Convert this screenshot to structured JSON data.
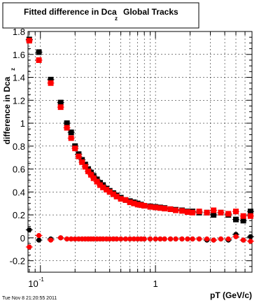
{
  "chart_data": {
    "type": "scatter",
    "title": "Fitted difference in Dca",
    "title_subscript": "z",
    "title_suffix": "Global Tracks",
    "xlabel": "pT (GeV/c)",
    "ylabel": "difference in Dca",
    "ylabel_subscript": "z",
    "x_scale": "log",
    "xlim": [
      0.078,
      6.9
    ],
    "ylim": [
      -0.3,
      1.8
    ],
    "grid": true,
    "y_ticks": [
      "-0.2",
      "0",
      "0.2",
      "0.4",
      "0.6",
      "0.8",
      "1",
      "1.2",
      "1.4",
      "1.6",
      "1.8"
    ],
    "x_ticks": [
      {
        "value": 0.1,
        "base": "10",
        "exponent": "-1"
      },
      {
        "value": 1,
        "base": "1",
        "exponent": ""
      }
    ],
    "footer": "Tue Nov  8 21:20:55 2011",
    "series": [
      {
        "name": "",
        "marker": "square",
        "color": "#000000",
        "points": [
          [
            0.08,
            1.73
          ],
          [
            0.097,
            1.62
          ],
          [
            0.123,
            1.38
          ],
          [
            0.15,
            1.18
          ],
          [
            0.17,
            1.0
          ],
          [
            0.185,
            0.92
          ],
          [
            0.2,
            0.8
          ],
          [
            0.215,
            0.73
          ],
          [
            0.23,
            0.68
          ],
          [
            0.245,
            0.64
          ],
          [
            0.26,
            0.6
          ],
          [
            0.275,
            0.57
          ],
          [
            0.29,
            0.54
          ],
          [
            0.31,
            0.51
          ],
          [
            0.33,
            0.48
          ],
          [
            0.35,
            0.46
          ],
          [
            0.375,
            0.43
          ],
          [
            0.4,
            0.41
          ],
          [
            0.43,
            0.39
          ],
          [
            0.46,
            0.37
          ],
          [
            0.5,
            0.35
          ],
          [
            0.55,
            0.33
          ],
          [
            0.6,
            0.32
          ],
          [
            0.65,
            0.31
          ],
          [
            0.7,
            0.3
          ],
          [
            0.75,
            0.29
          ],
          [
            0.8,
            0.28
          ],
          [
            0.9,
            0.275
          ],
          [
            1.0,
            0.27
          ],
          [
            1.1,
            0.265
          ],
          [
            1.2,
            0.26
          ],
          [
            1.35,
            0.25
          ],
          [
            1.5,
            0.245
          ],
          [
            1.7,
            0.24
          ],
          [
            1.9,
            0.23
          ],
          [
            2.1,
            0.23
          ],
          [
            2.4,
            0.22
          ],
          [
            2.8,
            0.22
          ],
          [
            3.2,
            0.2
          ],
          [
            3.7,
            0.22
          ],
          [
            4.3,
            0.2
          ],
          [
            5.0,
            0.16
          ],
          [
            5.8,
            0.15
          ],
          [
            6.7,
            0.23
          ]
        ]
      },
      {
        "name": "",
        "marker": "square",
        "color": "#ff0000",
        "points": [
          [
            0.08,
            1.72
          ],
          [
            0.097,
            1.55
          ],
          [
            0.123,
            1.35
          ],
          [
            0.15,
            1.14
          ],
          [
            0.17,
            0.96
          ],
          [
            0.185,
            0.87
          ],
          [
            0.2,
            0.78
          ],
          [
            0.215,
            0.71
          ],
          [
            0.23,
            0.66
          ],
          [
            0.245,
            0.62
          ],
          [
            0.26,
            0.58
          ],
          [
            0.275,
            0.55
          ],
          [
            0.29,
            0.52
          ],
          [
            0.31,
            0.49
          ],
          [
            0.33,
            0.46
          ],
          [
            0.35,
            0.44
          ],
          [
            0.375,
            0.42
          ],
          [
            0.4,
            0.4
          ],
          [
            0.43,
            0.38
          ],
          [
            0.46,
            0.36
          ],
          [
            0.5,
            0.34
          ],
          [
            0.55,
            0.33
          ],
          [
            0.6,
            0.31
          ],
          [
            0.65,
            0.3
          ],
          [
            0.7,
            0.29
          ],
          [
            0.75,
            0.285
          ],
          [
            0.8,
            0.28
          ],
          [
            0.9,
            0.27
          ],
          [
            1.0,
            0.265
          ],
          [
            1.1,
            0.26
          ],
          [
            1.2,
            0.255
          ],
          [
            1.35,
            0.25
          ],
          [
            1.5,
            0.24
          ],
          [
            1.7,
            0.235
          ],
          [
            1.9,
            0.225
          ],
          [
            2.1,
            0.22
          ],
          [
            2.4,
            0.23
          ],
          [
            2.8,
            0.22
          ],
          [
            3.2,
            0.24
          ],
          [
            3.7,
            0.22
          ],
          [
            4.3,
            0.21
          ],
          [
            5.0,
            0.23
          ],
          [
            5.8,
            0.19
          ],
          [
            6.7,
            0.19
          ]
        ]
      },
      {
        "name": "",
        "marker": "circle",
        "color": "#000000",
        "points": [
          [
            0.08,
            0.07
          ],
          [
            0.097,
            -0.02
          ],
          [
            0.123,
            -0.01
          ],
          [
            0.15,
            0.0
          ],
          [
            0.17,
            -0.01
          ],
          [
            0.185,
            -0.01
          ],
          [
            0.2,
            -0.01
          ],
          [
            0.215,
            -0.01
          ],
          [
            0.23,
            -0.01
          ],
          [
            0.245,
            -0.01
          ],
          [
            0.26,
            -0.01
          ],
          [
            0.275,
            -0.01
          ],
          [
            0.29,
            -0.01
          ],
          [
            0.31,
            -0.01
          ],
          [
            0.33,
            -0.01
          ],
          [
            0.35,
            -0.01
          ],
          [
            0.375,
            -0.01
          ],
          [
            0.4,
            -0.01
          ],
          [
            0.43,
            -0.01
          ],
          [
            0.46,
            -0.01
          ],
          [
            0.5,
            -0.01
          ],
          [
            0.55,
            -0.01
          ],
          [
            0.6,
            -0.01
          ],
          [
            0.65,
            -0.01
          ],
          [
            0.7,
            -0.01
          ],
          [
            0.75,
            -0.01
          ],
          [
            0.8,
            -0.01
          ],
          [
            0.9,
            -0.01
          ],
          [
            1.0,
            -0.01
          ],
          [
            1.1,
            -0.01
          ],
          [
            1.2,
            -0.01
          ],
          [
            1.35,
            -0.01
          ],
          [
            1.5,
            -0.01
          ],
          [
            1.7,
            -0.01
          ],
          [
            1.9,
            -0.01
          ],
          [
            2.1,
            -0.01
          ],
          [
            2.4,
            -0.01
          ],
          [
            2.8,
            -0.02
          ],
          [
            3.2,
            -0.02
          ],
          [
            3.7,
            -0.01
          ],
          [
            4.3,
            -0.02
          ],
          [
            5.0,
            0.03
          ],
          [
            5.8,
            -0.02
          ],
          [
            6.7,
            0.01
          ]
        ]
      },
      {
        "name": "",
        "marker": "circle",
        "color": "#ff0000",
        "points": [
          [
            0.08,
            -0.08
          ],
          [
            0.097,
            0.02
          ],
          [
            0.123,
            -0.02
          ],
          [
            0.15,
            0.0
          ],
          [
            0.17,
            -0.01
          ],
          [
            0.185,
            -0.01
          ],
          [
            0.2,
            -0.01
          ],
          [
            0.215,
            -0.01
          ],
          [
            0.23,
            -0.01
          ],
          [
            0.245,
            -0.01
          ],
          [
            0.26,
            -0.01
          ],
          [
            0.275,
            -0.01
          ],
          [
            0.29,
            -0.01
          ],
          [
            0.31,
            -0.01
          ],
          [
            0.33,
            -0.01
          ],
          [
            0.35,
            -0.01
          ],
          [
            0.375,
            -0.01
          ],
          [
            0.4,
            -0.01
          ],
          [
            0.43,
            -0.01
          ],
          [
            0.46,
            -0.01
          ],
          [
            0.5,
            -0.01
          ],
          [
            0.55,
            -0.01
          ],
          [
            0.6,
            -0.01
          ],
          [
            0.65,
            -0.01
          ],
          [
            0.7,
            -0.01
          ],
          [
            0.75,
            -0.01
          ],
          [
            0.8,
            -0.01
          ],
          [
            0.9,
            -0.01
          ],
          [
            1.0,
            -0.01
          ],
          [
            1.1,
            -0.01
          ],
          [
            1.2,
            -0.01
          ],
          [
            1.35,
            -0.01
          ],
          [
            1.5,
            -0.01
          ],
          [
            1.7,
            -0.01
          ],
          [
            1.9,
            -0.01
          ],
          [
            2.1,
            -0.01
          ],
          [
            2.4,
            -0.01
          ],
          [
            2.8,
            -0.01
          ],
          [
            3.2,
            -0.02
          ],
          [
            3.7,
            -0.01
          ],
          [
            4.3,
            -0.01
          ],
          [
            5.0,
            0.01
          ],
          [
            5.8,
            -0.02
          ],
          [
            6.7,
            -0.03
          ]
        ]
      }
    ]
  }
}
